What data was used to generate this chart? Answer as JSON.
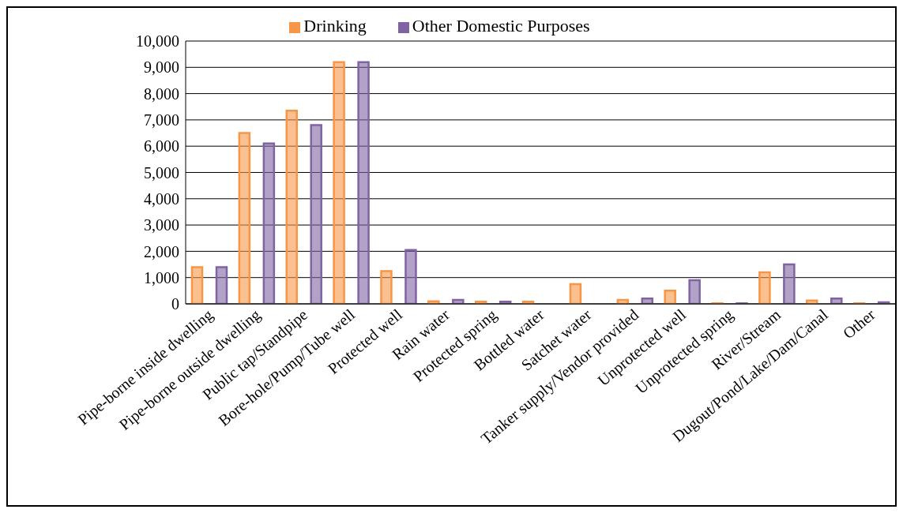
{
  "chart_data": {
    "type": "bar",
    "categories": [
      "Pipe-borne inside dwelling",
      "Pipe-borne outside dwelling",
      "Public tap/Standpipe",
      "Bore-hole/Pump/Tube well",
      "Protected well",
      "Rain water",
      "Protected spring",
      "Bottled water",
      "Satchet water",
      "Tanker supply/Vendor provided",
      "Unprotected well",
      "Unprotected spring",
      "River/Stream",
      "Dugout/Pond/Lake/Dam/Canal",
      "Other"
    ],
    "series": [
      {
        "name": "Drinking",
        "color": "#f79646",
        "values": [
          1400,
          6500,
          7350,
          9200,
          1250,
          100,
          80,
          80,
          750,
          150,
          500,
          20,
          1200,
          130,
          20
        ]
      },
      {
        "name": "Other Domestic Purposes",
        "color": "#8064a2",
        "values": [
          1400,
          6100,
          6800,
          9200,
          2050,
          150,
          80,
          0,
          0,
          200,
          900,
          20,
          1500,
          200,
          60
        ]
      }
    ],
    "ylim": [
      0,
      10000
    ],
    "yticks": [
      0,
      {
        "value": 1000,
        "label": "1,000"
      },
      {
        "value": 2000,
        "label": "2,000"
      },
      {
        "value": 3000,
        "label": "3,000"
      },
      {
        "value": 4000,
        "label": "4,000"
      },
      {
        "value": 5000,
        "label": "5,000"
      },
      {
        "value": 6000,
        "label": "6,000"
      },
      {
        "value": 7000,
        "label": "7,000"
      },
      {
        "value": 8000,
        "label": "8,000"
      },
      {
        "value": 9000,
        "label": "9,000"
      },
      {
        "value": 10000,
        "label": "10,000"
      }
    ],
    "grid": "y",
    "legend": "top"
  }
}
